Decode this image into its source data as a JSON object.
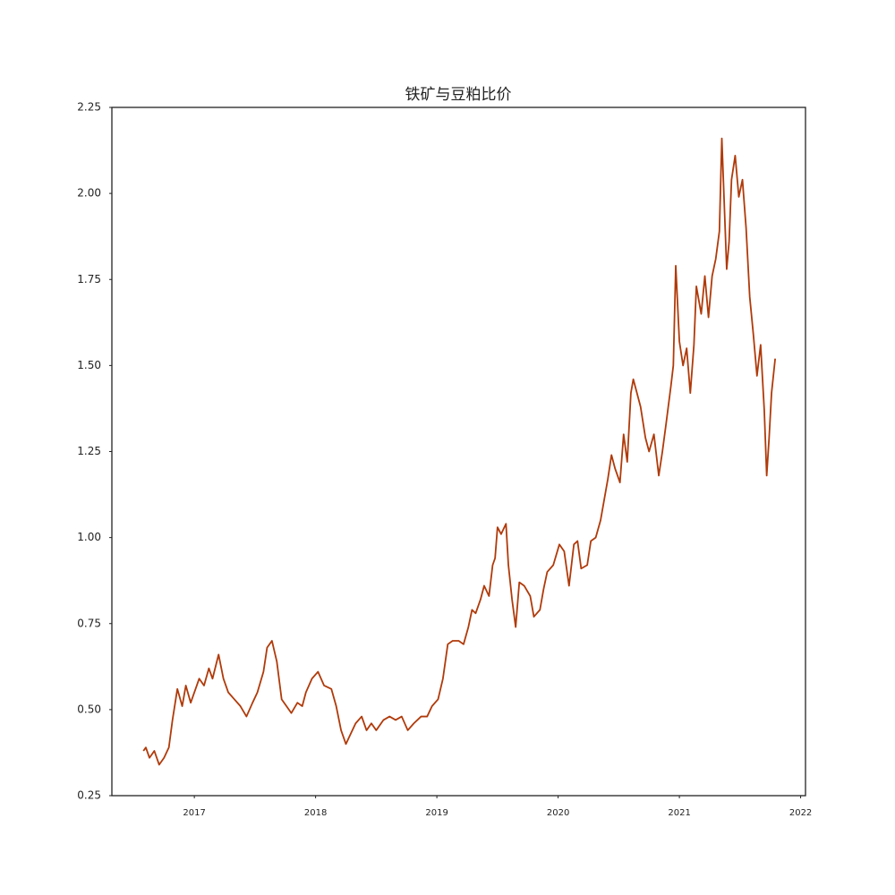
{
  "chart_data": {
    "type": "line",
    "title": "铁矿与豆粕比价",
    "x": [
      2016.58,
      2016.6,
      2016.63,
      2016.67,
      2016.71,
      2016.75,
      2016.79,
      2016.82,
      2016.86,
      2016.9,
      2016.93,
      2016.97,
      2017.01,
      2017.04,
      2017.08,
      2017.12,
      2017.15,
      2017.2,
      2017.24,
      2017.28,
      2017.33,
      2017.38,
      2017.43,
      2017.48,
      2017.52,
      2017.57,
      2017.6,
      2017.64,
      2017.68,
      2017.72,
      2017.76,
      2017.8,
      2017.85,
      2017.89,
      2017.92,
      2017.97,
      2018.02,
      2018.07,
      2018.13,
      2018.17,
      2018.21,
      2018.25,
      2018.29,
      2018.33,
      2018.38,
      2018.42,
      2018.46,
      2018.5,
      2018.56,
      2018.61,
      2018.66,
      2018.71,
      2018.76,
      2018.81,
      2018.87,
      2018.92,
      2018.96,
      2019.01,
      2019.05,
      2019.09,
      2019.13,
      2019.18,
      2019.22,
      2019.26,
      2019.29,
      2019.32,
      2019.36,
      2019.39,
      2019.43,
      2019.46,
      2019.48,
      2019.5,
      2019.53,
      2019.57,
      2019.59,
      2019.62,
      2019.65,
      2019.68,
      2019.72,
      2019.77,
      2019.8,
      2019.85,
      2019.88,
      2019.91,
      2019.96,
      2020.01,
      2020.05,
      2020.09,
      2020.13,
      2020.16,
      2020.19,
      2020.24,
      2020.27,
      2020.31,
      2020.35,
      2020.38,
      2020.41,
      2020.44,
      2020.47,
      2020.51,
      2020.54,
      2020.57,
      2020.6,
      2020.62,
      2020.65,
      2020.68,
      2020.72,
      2020.75,
      2020.79,
      2020.83,
      2020.86,
      2020.89,
      2020.93,
      2020.95,
      2020.97,
      2021.0,
      2021.03,
      2021.06,
      2021.09,
      2021.12,
      2021.14,
      2021.18,
      2021.21,
      2021.24,
      2021.27,
      2021.3,
      2021.33,
      2021.35,
      2021.39,
      2021.41,
      2021.43,
      2021.46,
      2021.49,
      2021.52,
      2021.55,
      2021.58,
      2021.61,
      2021.64,
      2021.67,
      2021.7,
      2021.72,
      2021.74,
      2021.76,
      2021.79
    ],
    "values": [
      0.38,
      0.39,
      0.36,
      0.38,
      0.34,
      0.36,
      0.39,
      0.47,
      0.56,
      0.51,
      0.57,
      0.52,
      0.56,
      0.59,
      0.57,
      0.62,
      0.59,
      0.66,
      0.59,
      0.55,
      0.53,
      0.51,
      0.48,
      0.52,
      0.55,
      0.61,
      0.68,
      0.7,
      0.64,
      0.53,
      0.51,
      0.49,
      0.52,
      0.51,
      0.55,
      0.59,
      0.61,
      0.57,
      0.56,
      0.51,
      0.44,
      0.4,
      0.43,
      0.46,
      0.48,
      0.44,
      0.46,
      0.44,
      0.47,
      0.48,
      0.47,
      0.48,
      0.44,
      0.46,
      0.48,
      0.48,
      0.51,
      0.53,
      0.59,
      0.69,
      0.7,
      0.7,
      0.69,
      0.74,
      0.79,
      0.78,
      0.82,
      0.86,
      0.83,
      0.92,
      0.94,
      1.03,
      1.01,
      1.04,
      0.92,
      0.82,
      0.74,
      0.87,
      0.86,
      0.83,
      0.77,
      0.79,
      0.85,
      0.9,
      0.92,
      0.98,
      0.96,
      0.86,
      0.98,
      0.99,
      0.91,
      0.92,
      0.99,
      1.0,
      1.05,
      1.11,
      1.17,
      1.24,
      1.2,
      1.16,
      1.3,
      1.22,
      1.42,
      1.46,
      1.42,
      1.38,
      1.29,
      1.25,
      1.3,
      1.18,
      1.25,
      1.33,
      1.44,
      1.5,
      1.79,
      1.57,
      1.5,
      1.55,
      1.42,
      1.56,
      1.73,
      1.65,
      1.76,
      1.64,
      1.76,
      1.81,
      1.89,
      2.16,
      1.78,
      1.86,
      2.04,
      2.11,
      1.99,
      2.04,
      1.9,
      1.7,
      1.59,
      1.47,
      1.56,
      1.37,
      1.18,
      1.29,
      1.42,
      1.52
    ],
    "color": "#b03a0a",
    "xlim": [
      2016.32,
      2022.04
    ],
    "xticks": [
      2017,
      2018,
      2019,
      2020,
      2021,
      2022
    ],
    "ylim": [
      0.25,
      2.25
    ],
    "yticks": [
      0.25,
      {
        "value": 0.5,
        "label": "0.50"
      },
      0.75,
      {
        "value": 1,
        "label": "1.00"
      },
      1.25,
      {
        "value": 1.5,
        "label": "1.50"
      },
      1.75,
      {
        "value": 2,
        "label": "2.00"
      },
      2.25
    ],
    "grid": false
  }
}
